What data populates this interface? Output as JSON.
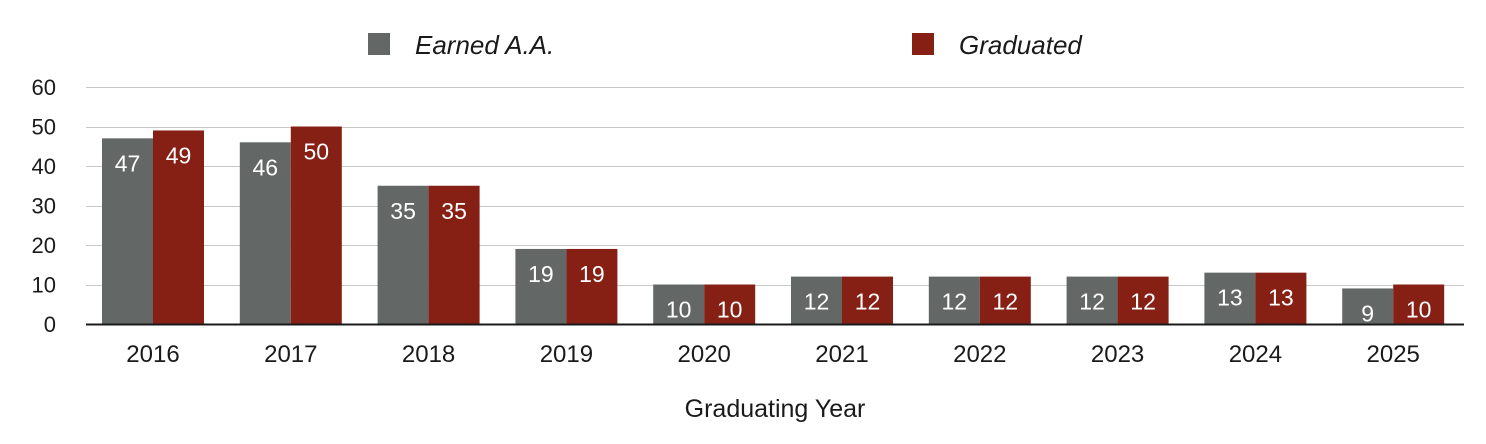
{
  "chart_data": {
    "type": "bar",
    "categories": [
      "2016",
      "2017",
      "2018",
      "2019",
      "2020",
      "2021",
      "2022",
      "2023",
      "2024",
      "2025"
    ],
    "series": [
      {
        "name": "Earned A.A.",
        "color": "#636866",
        "values": [
          47,
          46,
          35,
          19,
          10,
          12,
          12,
          12,
          13,
          9
        ]
      },
      {
        "name": "Graduated",
        "color": "#861f14",
        "values": [
          49,
          50,
          35,
          19,
          10,
          12,
          12,
          12,
          13,
          10
        ]
      }
    ],
    "xlabel": "Graduating Year",
    "ylabel": "",
    "ylim": [
      0,
      60
    ],
    "yticks": [
      0,
      10,
      20,
      30,
      40,
      50,
      60
    ],
    "grid": true,
    "legend_position": "top",
    "data_labels": true
  }
}
